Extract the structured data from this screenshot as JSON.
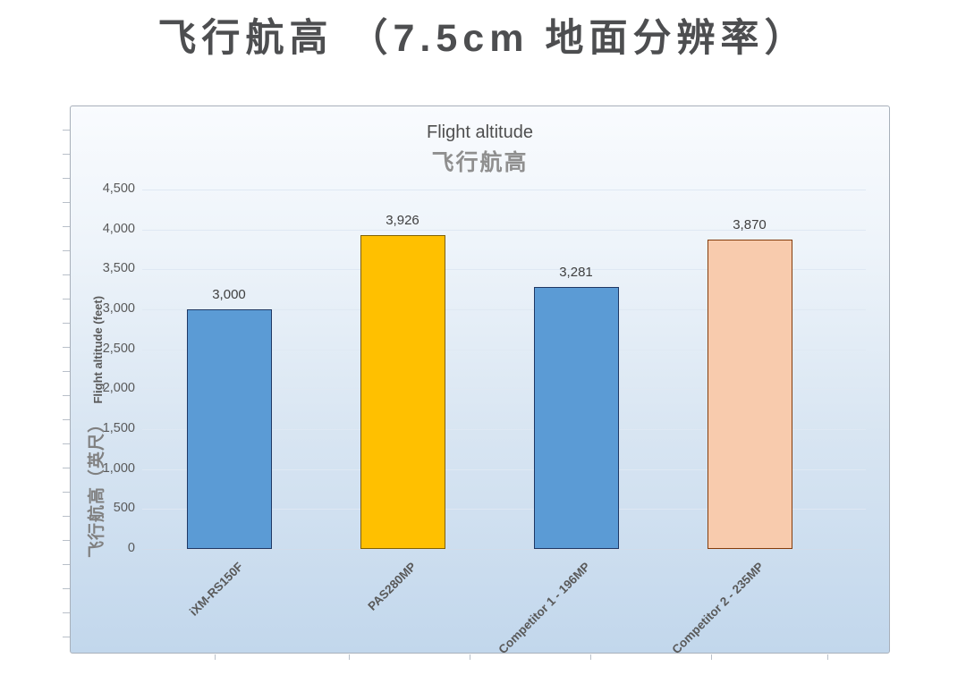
{
  "page_title": "飞行航高 （7.5cm 地面分辨率）",
  "chart": {
    "title_en": "Flight altitude",
    "title_zh": "飞行航高",
    "y_axis_title_zh": "飞行航高（英尺）",
    "y_axis_title_en": "Flight altitude (feet)"
  },
  "chart_data": {
    "type": "bar",
    "title": "Flight altitude 飞行航高",
    "categories": [
      "iXM-RS150F",
      "PAS280MP",
      "Competitor 1 - 196MP",
      "Competitor 2 - 235MP"
    ],
    "values": [
      3000,
      3926,
      3281,
      3870
    ],
    "value_labels": [
      "3,000",
      "3,926",
      "3,281",
      "3,870"
    ],
    "bar_colors": [
      "#5b9bd5",
      "#ffc000",
      "#5b9bd5",
      "#f8cbad"
    ],
    "bar_border_colors": [
      "#1f3864",
      "#7f6000",
      "#1f3864",
      "#843c0c"
    ],
    "ylabel": "飞行航高（英尺） Flight altitude (feet)",
    "ylim": [
      0,
      4500
    ],
    "ytick_step": 500,
    "ytick_labels": [
      "0",
      "500",
      "1,000",
      "1,500",
      "2,000",
      "2,500",
      "3,000",
      "3,500",
      "4,000",
      "4,500"
    ],
    "grid": true,
    "legend": "none",
    "plot_background_top": "#f9fbfe",
    "plot_background_bottom": "#c2d7ec"
  }
}
